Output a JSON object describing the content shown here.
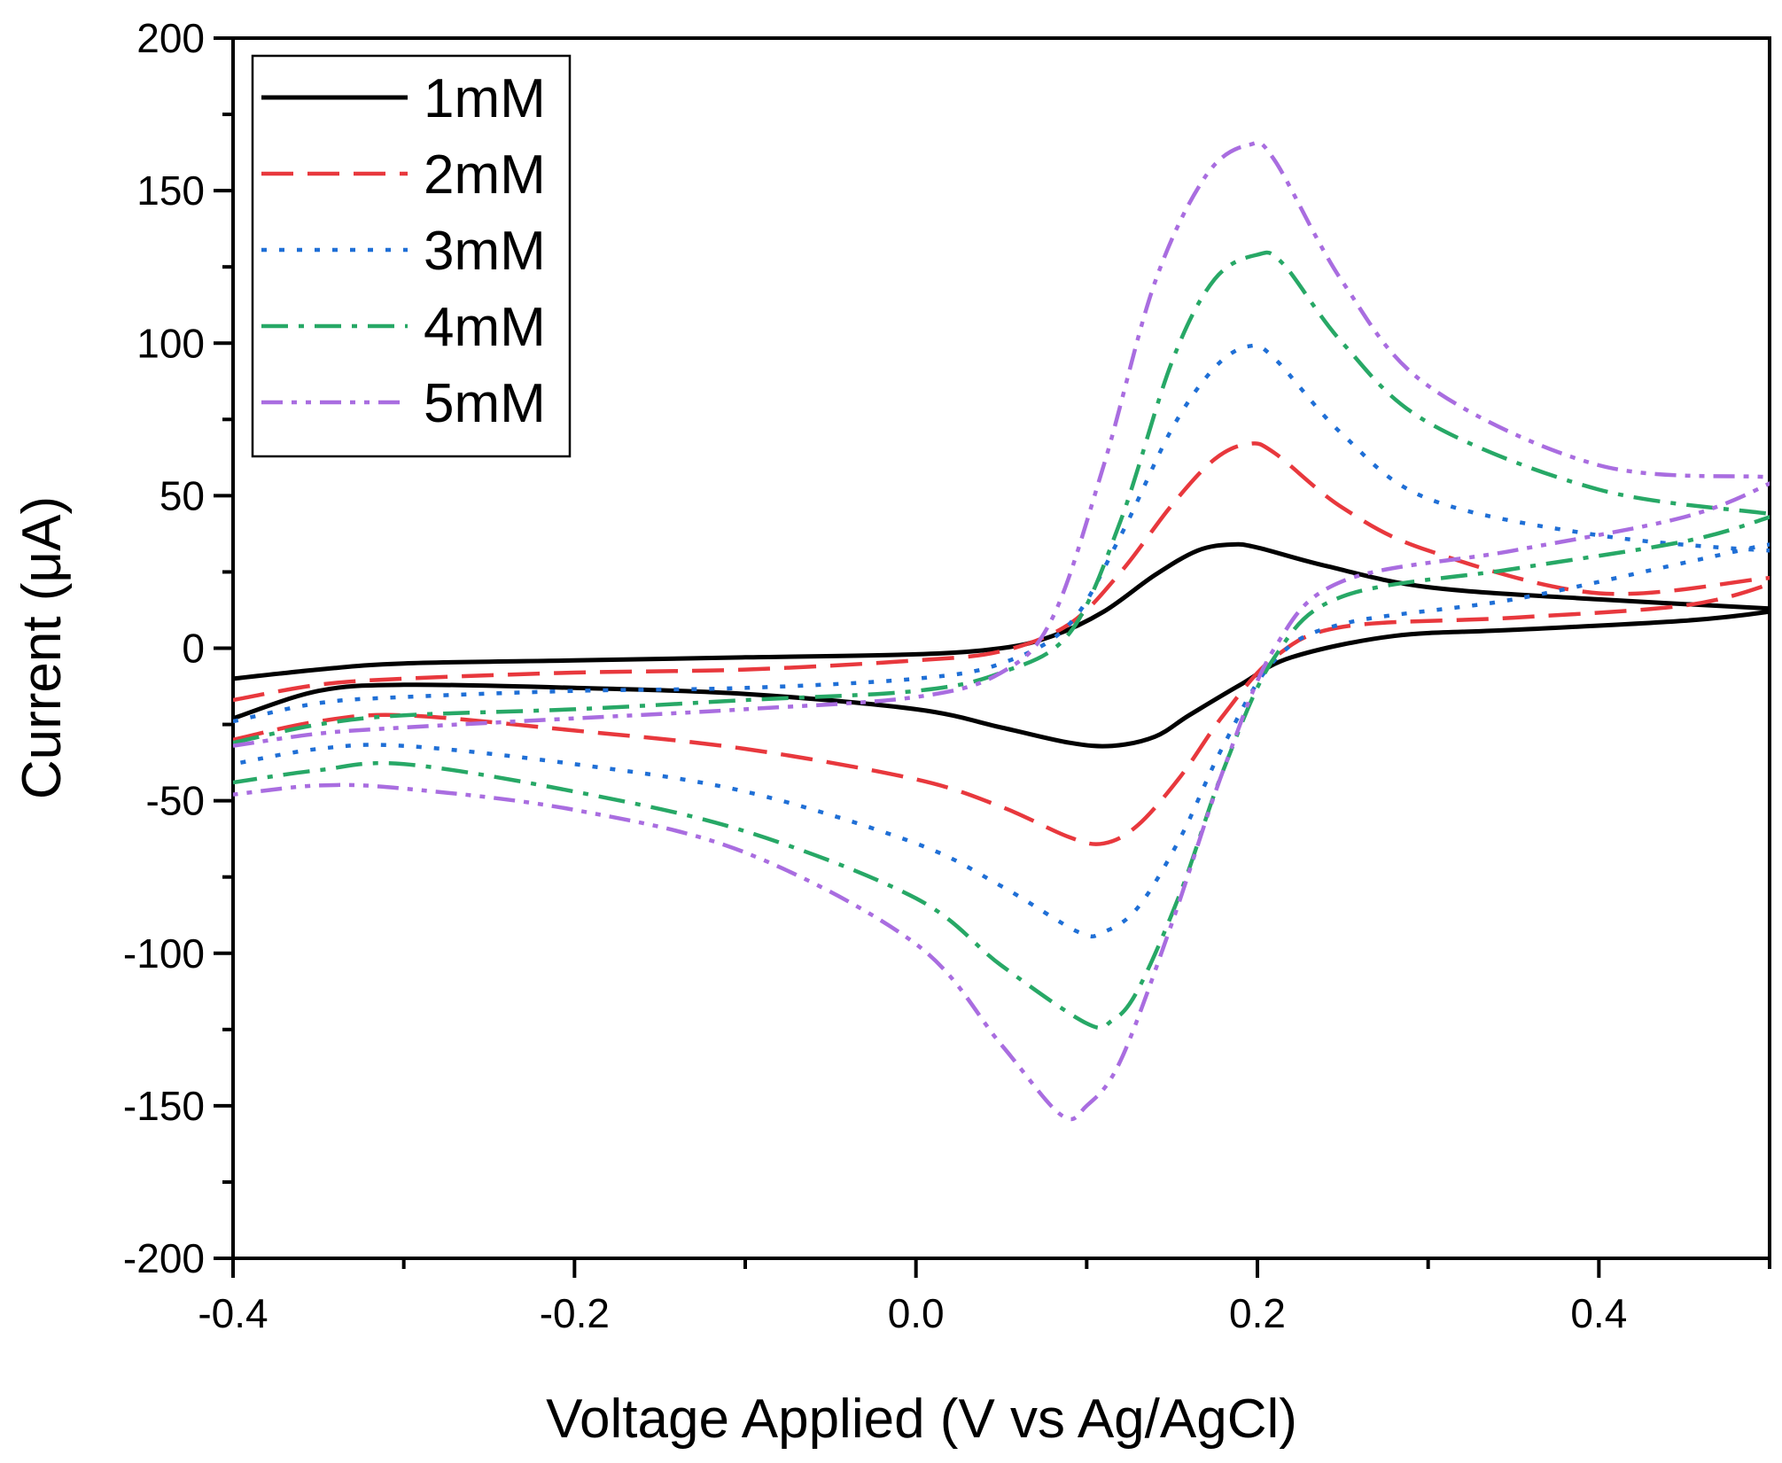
{
  "chart_data": {
    "type": "line",
    "title": "",
    "xlabel": "Voltage Applied (V vs Ag/AgCl)",
    "ylabel": "Current (μA)",
    "xlim": [
      -0.4,
      0.5
    ],
    "ylim": [
      -200,
      200
    ],
    "xticks": [
      -0.4,
      -0.2,
      0.0,
      0.2,
      0.4
    ],
    "xtick_labels": [
      "-0.4",
      "-0.2",
      "0.0",
      "0.2",
      "0.4"
    ],
    "yticks": [
      -200,
      -150,
      -100,
      -50,
      0,
      50,
      100,
      150,
      200
    ],
    "ytick_labels": [
      "-200",
      "-150",
      "-100",
      "-50",
      "0",
      "50",
      "100",
      "150",
      "200"
    ],
    "grid": false,
    "legend_position": "top-left",
    "series": [
      {
        "name": "1mM",
        "color": "#000000",
        "dash": "solid",
        "x": [
          -0.4,
          -0.35,
          -0.3,
          -0.2,
          -0.1,
          0.0,
          0.05,
          0.08,
          0.11,
          0.14,
          0.165,
          0.185,
          0.2,
          0.24,
          0.3,
          0.4,
          0.5,
          0.5,
          0.45,
          0.35,
          0.28,
          0.22,
          0.19,
          0.16,
          0.14,
          0.115,
          0.09,
          0.05,
          0.0,
          -0.1,
          -0.2,
          -0.3,
          -0.35,
          -0.4
        ],
        "y": [
          -10,
          -7,
          -5,
          -4,
          -3,
          -2,
          0,
          4,
          12,
          24,
          32,
          34,
          33,
          27,
          20,
          16,
          13,
          12,
          9,
          6,
          4,
          -3,
          -12,
          -22,
          -29,
          -32,
          -31,
          -26,
          -20,
          -15,
          -13,
          -12,
          -14,
          -23
        ]
      },
      {
        "name": "2mM",
        "color": "#e8383d",
        "dash": "dashed",
        "x": [
          -0.4,
          -0.35,
          -0.3,
          -0.2,
          -0.1,
          0.0,
          0.05,
          0.09,
          0.12,
          0.15,
          0.175,
          0.195,
          0.21,
          0.25,
          0.3,
          0.4,
          0.5,
          0.5,
          0.45,
          0.35,
          0.25,
          0.21,
          0.18,
          0.155,
          0.13,
          0.11,
          0.09,
          0.05,
          0.0,
          -0.1,
          -0.2,
          -0.3,
          -0.35,
          -0.4
        ],
        "y": [
          -17,
          -12,
          -10,
          -8,
          -7,
          -4,
          -1,
          8,
          25,
          47,
          62,
          67,
          64,
          46,
          32,
          18,
          23,
          21,
          14,
          10,
          7,
          -3,
          -22,
          -42,
          -58,
          -64,
          -62,
          -52,
          -43,
          -33,
          -27,
          -22,
          -24,
          -30
        ]
      },
      {
        "name": "3mM",
        "color": "#1f6fd6",
        "dash": "dotted",
        "x": [
          -0.4,
          -0.35,
          -0.3,
          -0.2,
          -0.1,
          0.0,
          0.05,
          0.09,
          0.12,
          0.15,
          0.175,
          0.195,
          0.21,
          0.25,
          0.3,
          0.4,
          0.5,
          0.5,
          0.45,
          0.35,
          0.25,
          0.21,
          0.18,
          0.155,
          0.13,
          0.11,
          0.095,
          0.05,
          0.0,
          -0.1,
          -0.2,
          -0.3,
          -0.35,
          -0.4
        ],
        "y": [
          -24,
          -18,
          -16,
          -14,
          -13,
          -10,
          -5,
          8,
          37,
          72,
          92,
          99,
          95,
          70,
          49,
          37,
          32,
          34,
          28,
          16,
          8,
          -4,
          -32,
          -62,
          -85,
          -93,
          -93,
          -78,
          -64,
          -47,
          -38,
          -32,
          -33,
          -38
        ]
      },
      {
        "name": "4mM",
        "color": "#27a866",
        "dash": "dashdot",
        "x": [
          -0.4,
          -0.35,
          -0.3,
          -0.2,
          -0.1,
          0.0,
          0.05,
          0.09,
          0.12,
          0.15,
          0.175,
          0.2,
          0.215,
          0.25,
          0.3,
          0.4,
          0.5,
          0.5,
          0.45,
          0.35,
          0.25,
          0.21,
          0.18,
          0.155,
          0.13,
          0.115,
          0.1,
          0.05,
          0.0,
          -0.1,
          -0.2,
          -0.3,
          -0.35,
          -0.4
        ],
        "y": [
          -31,
          -25,
          -22,
          -20,
          -17,
          -14,
          -8,
          5,
          42,
          94,
          121,
          129,
          126,
          100,
          74,
          52,
          44,
          43,
          35,
          26,
          17,
          -3,
          -40,
          -80,
          -112,
          -122,
          -123,
          -104,
          -82,
          -60,
          -47,
          -38,
          -40,
          -44
        ]
      },
      {
        "name": "5mM",
        "color": "#a96de0",
        "dash": "dashdotdot",
        "x": [
          -0.4,
          -0.35,
          -0.3,
          -0.2,
          -0.1,
          0.0,
          0.05,
          0.08,
          0.11,
          0.14,
          0.17,
          0.195,
          0.21,
          0.25,
          0.3,
          0.4,
          0.5,
          0.5,
          0.45,
          0.35,
          0.25,
          0.21,
          0.18,
          0.15,
          0.12,
          0.1,
          0.085,
          0.05,
          0.0,
          -0.1,
          -0.2,
          -0.3,
          -0.35,
          -0.4
        ],
        "y": [
          -32,
          -28,
          -26,
          -23,
          -20,
          -16,
          -8,
          10,
          60,
          120,
          155,
          165,
          160,
          120,
          86,
          60,
          56,
          54,
          43,
          32,
          22,
          0,
          -40,
          -90,
          -135,
          -150,
          -153,
          -130,
          -97,
          -67,
          -53,
          -46,
          -45,
          -48
        ]
      }
    ]
  }
}
